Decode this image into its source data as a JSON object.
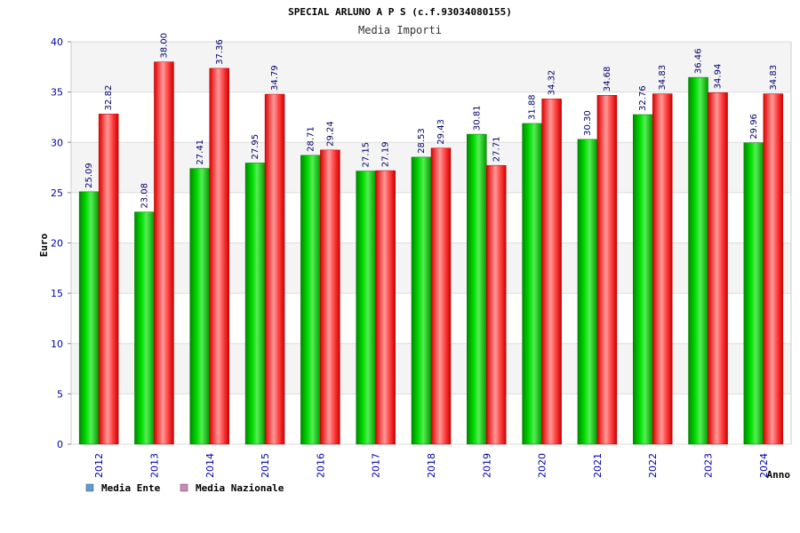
{
  "chart_data": {
    "type": "bar",
    "title": "SPECIAL ARLUNO A P S (c.f.93034080155)",
    "subtitle": "Media Importi",
    "xlabel": "Anno",
    "ylabel": "Euro",
    "ylim": [
      0,
      40
    ],
    "yticks": [
      0,
      5,
      10,
      15,
      20,
      25,
      30,
      35,
      40
    ],
    "grid": true,
    "legend_position": "bottom-left",
    "categories": [
      "2012",
      "2013",
      "2014",
      "2015",
      "2016",
      "2017",
      "2018",
      "2019",
      "2020",
      "2021",
      "2022",
      "2023",
      "2024"
    ],
    "series": [
      {
        "name": "Media Ente",
        "color": "#00cc00",
        "legend_color": "#5b9bd5",
        "values": [
          25.09,
          23.08,
          27.41,
          27.95,
          28.71,
          27.15,
          28.53,
          30.81,
          31.88,
          30.3,
          32.76,
          36.46,
          29.96
        ],
        "labels": [
          "25.09",
          "23.08",
          "27.41",
          "27.95",
          "28.71",
          "27.15",
          "28.53",
          "30.81",
          "31.88",
          "30.30",
          "32.76",
          "36.46",
          "29.96"
        ]
      },
      {
        "name": "Media Nazionale",
        "color": "#ee1111",
        "legend_color": "#cc88bb",
        "values": [
          32.82,
          38.0,
          37.36,
          34.79,
          29.24,
          27.19,
          29.43,
          27.71,
          34.32,
          34.68,
          34.83,
          34.94,
          34.83
        ],
        "labels": [
          "32.82",
          "38.00",
          "37.36",
          "34.79",
          "29.24",
          "27.19",
          "29.43",
          "27.71",
          "34.32",
          "34.68",
          "34.83",
          "34.94",
          "34.83"
        ]
      }
    ]
  }
}
